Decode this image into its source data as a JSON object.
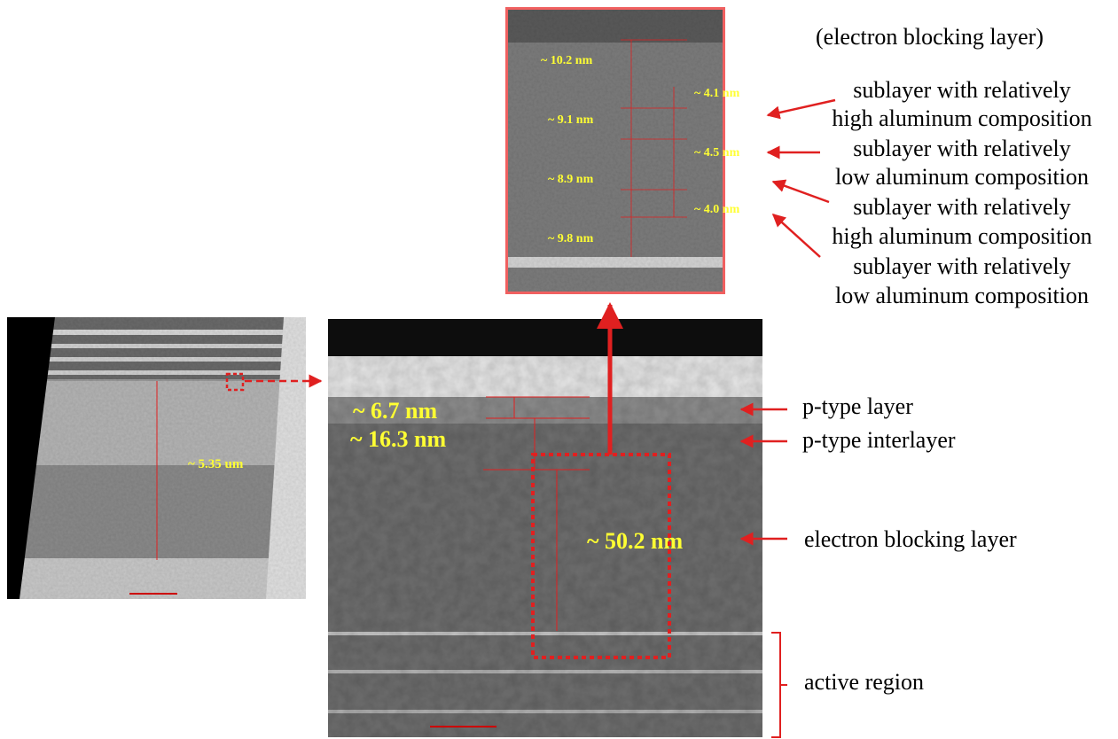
{
  "overview_image": {
    "measurement": "~ 5.35 um"
  },
  "main_image": {
    "measurements": [
      "~ 6.7 nm",
      "~ 16.3 nm",
      "~ 50.2 nm"
    ]
  },
  "zoom_image": {
    "measurements": [
      "~ 10.2 nm",
      "~ 4.1 nm",
      "~ 9.1 nm",
      "~ 4.5 nm",
      "~ 8.9 nm",
      "~ 4.0 nm",
      "~ 9.8 nm"
    ]
  },
  "annotations": {
    "zoom_title": "(electron blocking layer)",
    "sublayers": [
      [
        "sublayer with relatively",
        "high aluminum composition"
      ],
      [
        "sublayer with relatively",
        "low aluminum composition"
      ],
      [
        "sublayer with relatively",
        "high aluminum composition"
      ],
      [
        "sublayer with relatively",
        "low aluminum composition"
      ]
    ],
    "layers": [
      "p-type layer",
      "p-type interlayer",
      "electron blocking layer",
      "active region"
    ]
  }
}
